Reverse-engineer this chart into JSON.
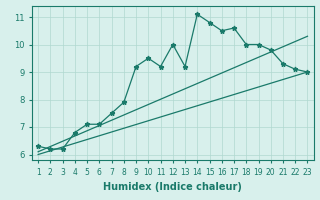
{
  "xlabel": "Humidex (Indice chaleur)",
  "x": [
    1,
    2,
    3,
    4,
    5,
    6,
    7,
    8,
    9,
    10,
    11,
    12,
    13,
    14,
    15,
    16,
    17,
    18,
    19,
    20,
    21,
    22,
    23
  ],
  "main_line": [
    6.3,
    6.2,
    6.2,
    6.8,
    7.1,
    7.1,
    7.5,
    7.9,
    9.2,
    9.5,
    9.2,
    10.0,
    9.2,
    11.1,
    10.8,
    10.5,
    10.6,
    10.0,
    10.0,
    9.8,
    9.3,
    9.1,
    9.0
  ],
  "upper_line_pts": [
    [
      1,
      6.1
    ],
    [
      23,
      10.3
    ]
  ],
  "lower_line_pts": [
    [
      1,
      6.0
    ],
    [
      23,
      9.0
    ]
  ],
  "line_color": "#1a7a6a",
  "bg_color": "#d8f0ec",
  "grid_color": "#b0d8d0",
  "ylim": [
    5.8,
    11.4
  ],
  "xlim": [
    0.5,
    23.5
  ],
  "yticks": [
    6,
    7,
    8,
    9,
    10,
    11
  ],
  "xticks": [
    1,
    2,
    3,
    4,
    5,
    6,
    7,
    8,
    9,
    10,
    11,
    12,
    13,
    14,
    15,
    16,
    17,
    18,
    19,
    20,
    21,
    22,
    23
  ],
  "tick_fontsize": 5.5,
  "ytick_fontsize": 6.0,
  "xlabel_fontsize": 7
}
